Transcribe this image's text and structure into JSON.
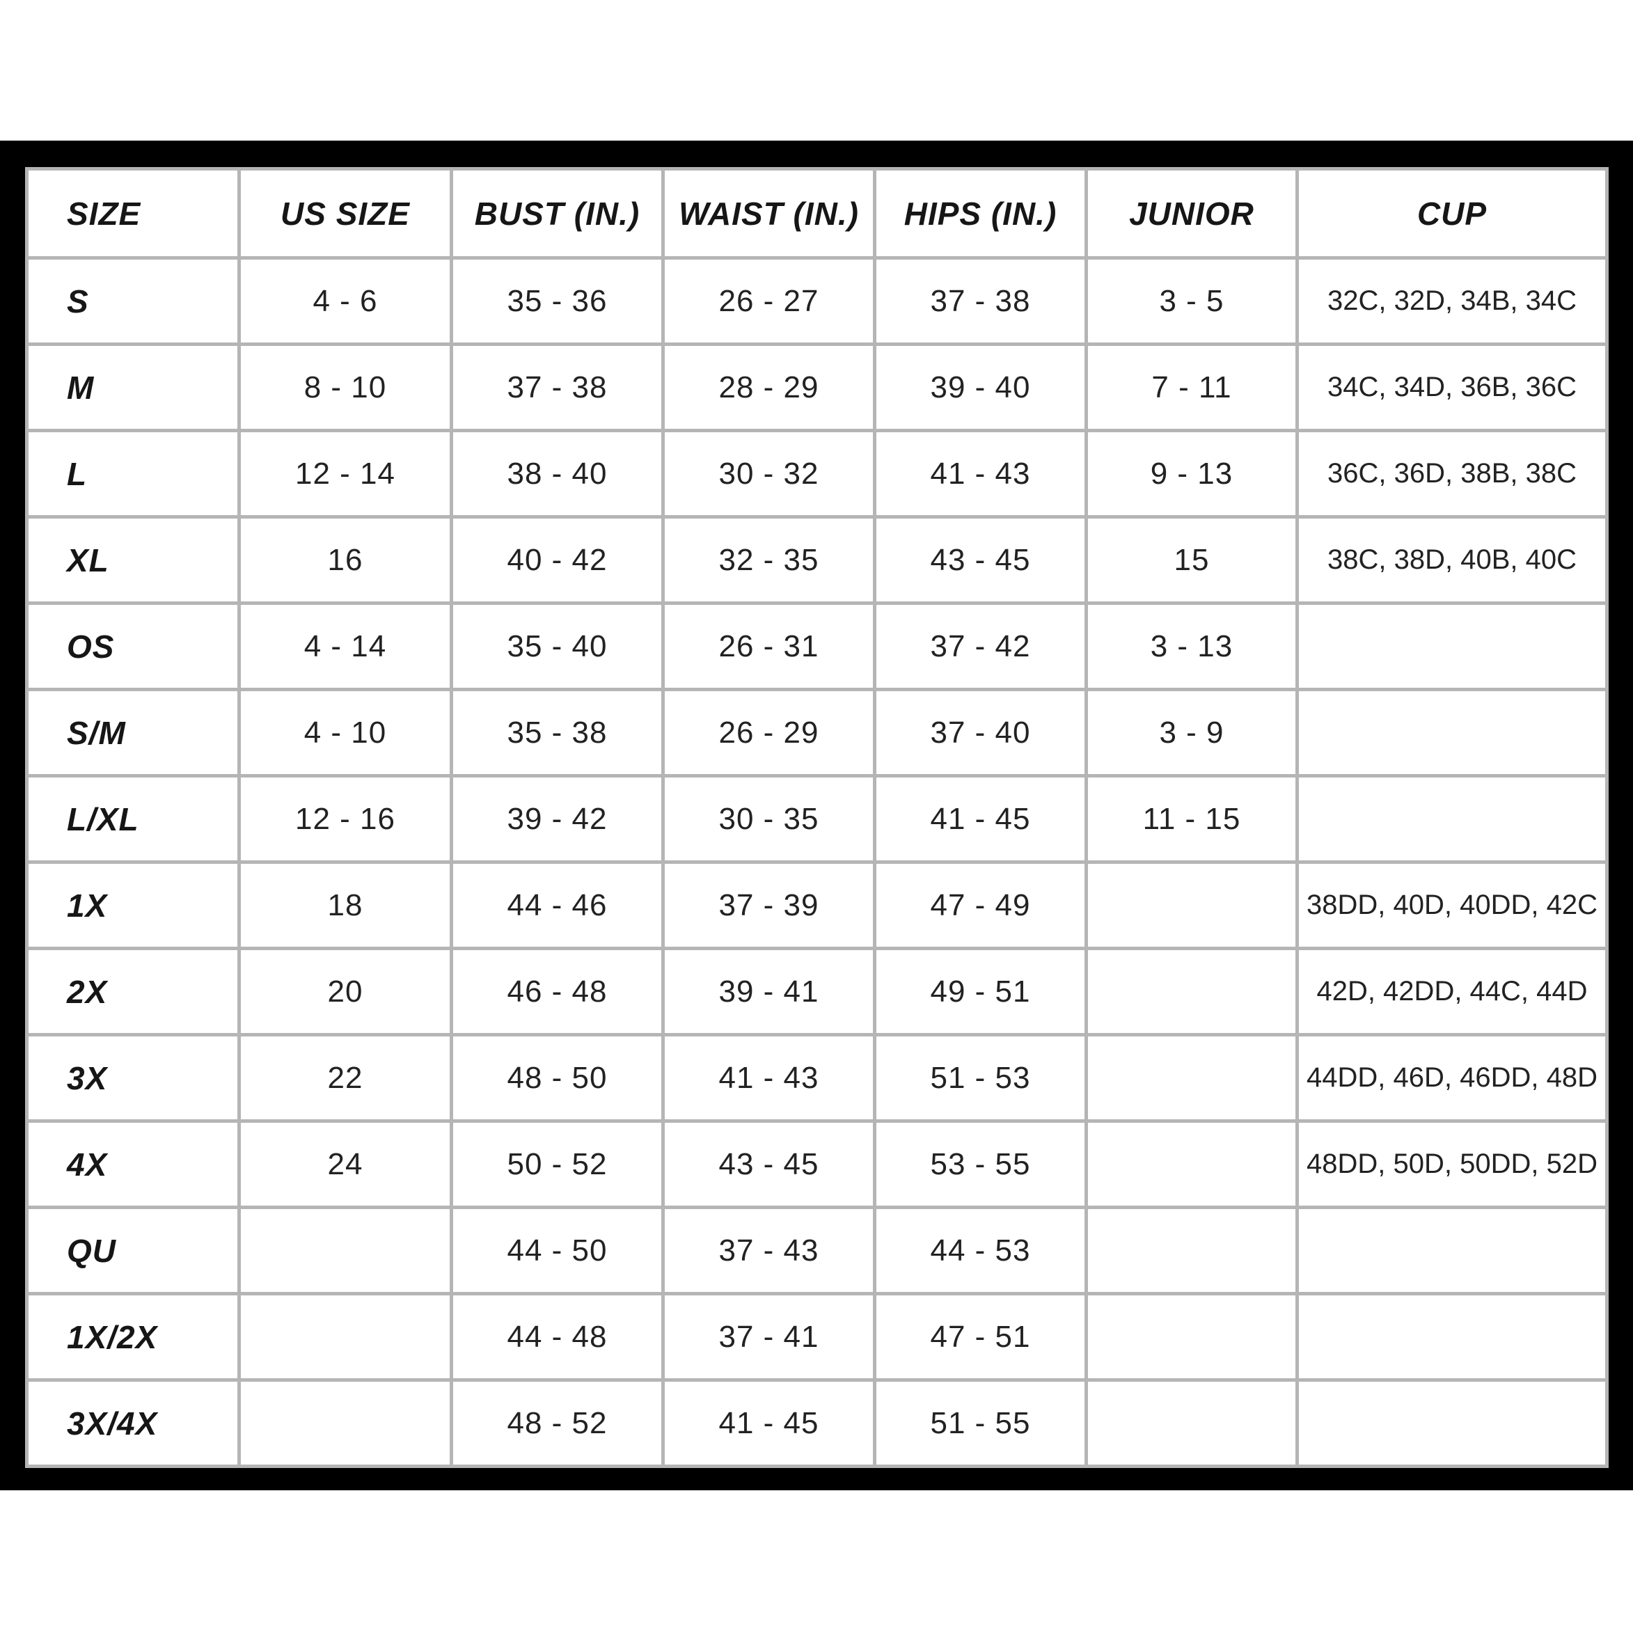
{
  "page": {
    "background": "#ffffff",
    "frame_color": "#000000"
  },
  "size_chart": {
    "columns": [
      "SIZE",
      "US SIZE",
      "BUST (IN.)",
      "WAIST (IN.)",
      "HIPS (IN.)",
      "JUNIOR",
      "CUP"
    ],
    "rows": [
      [
        "S",
        "4 - 6",
        "35 - 36",
        "26 - 27",
        "37 - 38",
        "3 - 5",
        "32C, 32D, 34B, 34C"
      ],
      [
        "M",
        "8 - 10",
        "37 - 38",
        "28 - 29",
        "39 - 40",
        "7 - 11",
        "34C, 34D, 36B, 36C"
      ],
      [
        "L",
        "12 - 14",
        "38 - 40",
        "30 - 32",
        "41 - 43",
        "9 - 13",
        "36C, 36D, 38B, 38C"
      ],
      [
        "XL",
        "16",
        "40 - 42",
        "32 - 35",
        "43 - 45",
        "15",
        "38C, 38D, 40B, 40C"
      ],
      [
        "OS",
        "4 - 14",
        "35 - 40",
        "26 - 31",
        "37 - 42",
        "3 - 13",
        ""
      ],
      [
        "S/M",
        "4 - 10",
        "35 - 38",
        "26 - 29",
        "37 - 40",
        "3 - 9",
        ""
      ],
      [
        "L/XL",
        "12 - 16",
        "39 - 42",
        "30 - 35",
        "41 - 45",
        "11 - 15",
        ""
      ],
      [
        "1X",
        "18",
        "44 - 46",
        "37 - 39",
        "47 - 49",
        "",
        "38DD, 40D, 40DD, 42C"
      ],
      [
        "2X",
        "20",
        "46 - 48",
        "39 - 41",
        "49 - 51",
        "",
        "42D, 42DD, 44C, 44D"
      ],
      [
        "3X",
        "22",
        "48 - 50",
        "41 - 43",
        "51 - 53",
        "",
        "44DD, 46D, 46DD, 48D"
      ],
      [
        "4X",
        "24",
        "50 - 52",
        "43 - 45",
        "53 - 55",
        "",
        "48DD, 50D, 50DD, 52D"
      ],
      [
        "QU",
        "",
        "44 - 50",
        "37 - 43",
        "44 - 53",
        "",
        ""
      ],
      [
        "1X/2X",
        "",
        "44 - 48",
        "37 - 41",
        "47 - 51",
        "",
        ""
      ],
      [
        "3X/4X",
        "",
        "48 - 52",
        "41 - 45",
        "51 - 55",
        "",
        ""
      ]
    ],
    "colors": {
      "grid": "#b5b5b5",
      "text": "#222222",
      "header_text": "#161616",
      "cell_background": "#ffffff"
    }
  }
}
